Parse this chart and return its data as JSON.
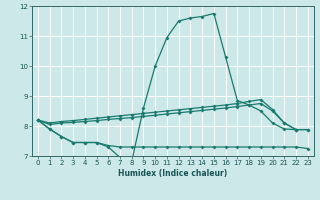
{
  "xlabel": "Humidex (Indice chaleur)",
  "bg_color": "#cce8e8",
  "grid_color": "#ffffff",
  "line_color": "#1a7a6e",
  "xlim": [
    -0.5,
    23.5
  ],
  "ylim": [
    7.0,
    12.0
  ],
  "xticks": [
    0,
    1,
    2,
    3,
    4,
    5,
    6,
    7,
    8,
    9,
    10,
    11,
    12,
    13,
    14,
    15,
    16,
    17,
    18,
    19,
    20,
    21,
    22,
    23
  ],
  "yticks": [
    7,
    8,
    9,
    10,
    11,
    12
  ],
  "line1_x": [
    0,
    1,
    2,
    3,
    4,
    5,
    6,
    7,
    8,
    9,
    10,
    11,
    12,
    13,
    14,
    15,
    16,
    17,
    18,
    19,
    20,
    21,
    22
  ],
  "line1_y": [
    8.2,
    7.9,
    7.65,
    7.45,
    7.45,
    7.45,
    7.3,
    6.95,
    6.82,
    8.6,
    10.0,
    10.95,
    11.5,
    11.6,
    11.65,
    11.75,
    10.3,
    8.85,
    8.7,
    8.5,
    8.1,
    7.9,
    7.88
  ],
  "line2_x": [
    0,
    1,
    2,
    3,
    4,
    5,
    6,
    7,
    8,
    9,
    10,
    11,
    12,
    13,
    14,
    15,
    16,
    17,
    18,
    19,
    20,
    21,
    22,
    23
  ],
  "line2_y": [
    8.2,
    7.9,
    7.65,
    7.45,
    7.45,
    7.45,
    7.35,
    7.3,
    7.3,
    7.3,
    7.3,
    7.3,
    7.3,
    7.3,
    7.3,
    7.3,
    7.3,
    7.3,
    7.3,
    7.3,
    7.3,
    7.3,
    7.3,
    7.25
  ],
  "line3_x": [
    0,
    1,
    2,
    3,
    4,
    5,
    6,
    7,
    8,
    9,
    10,
    11,
    12,
    13,
    14,
    15,
    16,
    17,
    18,
    19,
    20,
    21,
    22,
    23
  ],
  "line3_y": [
    8.2,
    8.05,
    8.1,
    8.12,
    8.15,
    8.18,
    8.22,
    8.25,
    8.28,
    8.32,
    8.36,
    8.4,
    8.44,
    8.48,
    8.52,
    8.56,
    8.6,
    8.65,
    8.7,
    8.75,
    8.5,
    8.1,
    7.88,
    7.88
  ],
  "line4_x": [
    0,
    1,
    2,
    3,
    4,
    5,
    6,
    7,
    8,
    9,
    10,
    11,
    12,
    13,
    14,
    15,
    16,
    17,
    18,
    19,
    20,
    21,
    22,
    23
  ],
  "line4_y": [
    8.2,
    8.1,
    8.15,
    8.18,
    8.22,
    8.26,
    8.3,
    8.34,
    8.38,
    8.42,
    8.46,
    8.5,
    8.54,
    8.58,
    8.62,
    8.66,
    8.7,
    8.75,
    8.82,
    8.88,
    8.55,
    8.1,
    7.88,
    7.88
  ]
}
